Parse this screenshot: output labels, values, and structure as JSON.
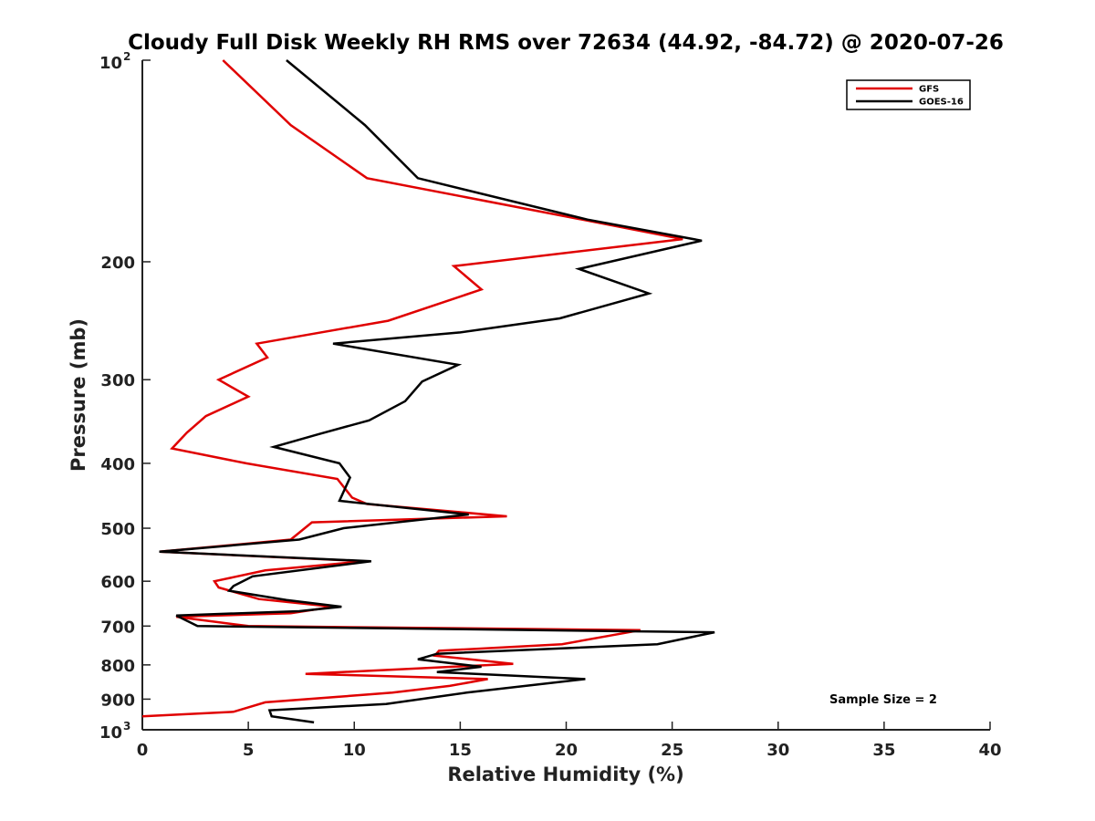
{
  "chart_data": {
    "type": "line",
    "title": "Cloudy Full Disk Weekly RH RMS over 72634 (44.92, -84.72) @ 2020-07-26",
    "xlabel": "Relative Humidity (%)",
    "ylabel": "Pressure (mb)",
    "xlim": [
      0,
      40
    ],
    "ylim": [
      100,
      1000
    ],
    "y_scale": "log",
    "y_reversed": true,
    "grid": false,
    "legend_position": "top-right",
    "x_ticks": [
      "0",
      "5",
      "10",
      "15",
      "20",
      "25",
      "30",
      "35",
      "40"
    ],
    "y_ticks": [
      {
        "base": "10",
        "exp": "2",
        "value": 100
      },
      {
        "label": "200",
        "value": 200
      },
      {
        "label": "300",
        "value": 300
      },
      {
        "label": "400",
        "value": 400
      },
      {
        "label": "500",
        "value": 500
      },
      {
        "label": "600",
        "value": 600
      },
      {
        "label": "700",
        "value": 700
      },
      {
        "label": "800",
        "value": 800
      },
      {
        "label": "900",
        "value": 900
      },
      {
        "base": "10",
        "exp": "3",
        "value": 1000
      }
    ],
    "series": [
      {
        "name": "GFS",
        "color": "#e00000",
        "points": [
          [
            3.8,
            100
          ],
          [
            7.0,
            125
          ],
          [
            10.6,
            150
          ],
          [
            19.5,
            170
          ],
          [
            25.5,
            185
          ],
          [
            14.7,
            203
          ],
          [
            16.0,
            220
          ],
          [
            11.6,
            245
          ],
          [
            5.4,
            265
          ],
          [
            5.9,
            278
          ],
          [
            3.6,
            300
          ],
          [
            5.0,
            318
          ],
          [
            3.0,
            340
          ],
          [
            2.1,
            360
          ],
          [
            1.4,
            380
          ],
          [
            4.9,
            400
          ],
          [
            9.2,
            422
          ],
          [
            9.9,
            450
          ],
          [
            10.6,
            460
          ],
          [
            17.2,
            480
          ],
          [
            8.0,
            490
          ],
          [
            7.0,
            520
          ],
          [
            0.8,
            542
          ],
          [
            10.5,
            560
          ],
          [
            5.8,
            578
          ],
          [
            3.4,
            600
          ],
          [
            3.6,
            613
          ],
          [
            5.5,
            638
          ],
          [
            9.0,
            655
          ],
          [
            7.0,
            670
          ],
          [
            1.6,
            678
          ],
          [
            5.0,
            700
          ],
          [
            23.5,
            710
          ],
          [
            19.8,
            745
          ],
          [
            14.0,
            762
          ],
          [
            13.8,
            775
          ],
          [
            17.5,
            797
          ],
          [
            7.7,
            825
          ],
          [
            16.3,
            840
          ],
          [
            14.5,
            860
          ],
          [
            11.8,
            880
          ],
          [
            5.8,
            910
          ],
          [
            4.3,
            940
          ],
          [
            0.0,
            955
          ]
        ]
      },
      {
        "name": "GOES-16",
        "color": "#000000",
        "points": [
          [
            6.8,
            100
          ],
          [
            10.5,
            125
          ],
          [
            13.0,
            150
          ],
          [
            21.0,
            173
          ],
          [
            26.4,
            186
          ],
          [
            20.6,
            205
          ],
          [
            23.9,
            223
          ],
          [
            19.7,
            243
          ],
          [
            15.0,
            255
          ],
          [
            9.0,
            265
          ],
          [
            14.9,
            285
          ],
          [
            13.2,
            302
          ],
          [
            12.4,
            323
          ],
          [
            10.7,
            345
          ],
          [
            8.3,
            362
          ],
          [
            6.2,
            378
          ],
          [
            9.3,
            400
          ],
          [
            9.8,
            420
          ],
          [
            9.3,
            455
          ],
          [
            15.4,
            477
          ],
          [
            9.5,
            500
          ],
          [
            7.4,
            520
          ],
          [
            0.8,
            542
          ],
          [
            10.8,
            560
          ],
          [
            5.2,
            590
          ],
          [
            4.3,
            610
          ],
          [
            4.1,
            620
          ],
          [
            6.8,
            640
          ],
          [
            9.4,
            655
          ],
          [
            7.4,
            665
          ],
          [
            1.6,
            675
          ],
          [
            2.6,
            700
          ],
          [
            27.0,
            715
          ],
          [
            24.3,
            745
          ],
          [
            13.9,
            770
          ],
          [
            13.0,
            785
          ],
          [
            16.0,
            805
          ],
          [
            13.9,
            820
          ],
          [
            20.9,
            840
          ],
          [
            15.3,
            880
          ],
          [
            11.5,
            915
          ],
          [
            6.0,
            935
          ],
          [
            6.1,
            955
          ],
          [
            8.1,
            975
          ]
        ]
      }
    ],
    "annotations": [
      {
        "text": "Sample Size = 2",
        "x": 35,
        "y": 900
      }
    ]
  }
}
